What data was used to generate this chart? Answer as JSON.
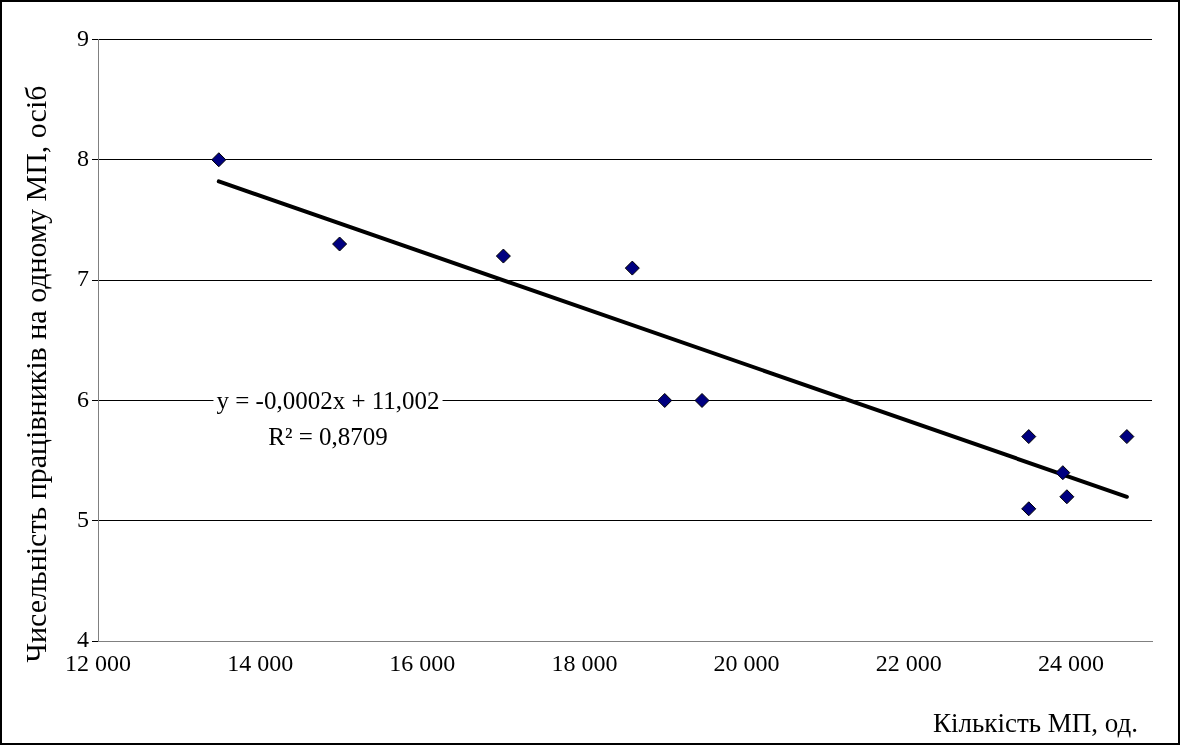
{
  "chart_data": {
    "type": "scatter",
    "xlabel": "Кількість МП, од.",
    "ylabel": "Чисельність працівників на одному МП,  осіб",
    "annotations": [
      "y = -0,0002x + 11,002",
      "R² = 0,8709"
    ],
    "series": [
      {
        "color": "#000080",
        "x": [
          13490,
          14980,
          17000,
          18590,
          18990,
          19450,
          23480,
          23480,
          23900,
          23950,
          24690
        ],
        "values": [
          8.0,
          7.3,
          7.2,
          7.1,
          6.0,
          6.0,
          5.7,
          5.1,
          5.4,
          5.2,
          5.7
        ]
      },
      {
        "type": "line",
        "marker": "none",
        "color": "#000000",
        "x": [
          13490,
          24690
        ],
        "values": [
          7.82,
          5.2
        ]
      }
    ],
    "xlim": [
      12000,
      25000
    ],
    "xticks": [
      {
        "value": 12000,
        "label": "12 000"
      },
      {
        "value": 14000,
        "label": "14 000"
      },
      {
        "value": 16000,
        "label": "16 000"
      },
      {
        "value": 18000,
        "label": "18 000"
      },
      {
        "value": 20000,
        "label": "20 000"
      },
      {
        "value": 22000,
        "label": "22 000"
      },
      {
        "value": 24000,
        "label": "24 000"
      }
    ],
    "ylim": [
      4,
      9
    ],
    "yticks": [
      4,
      5,
      6,
      7,
      8,
      9
    ],
    "grid": "y",
    "marker": "diamond",
    "legend": false
  }
}
